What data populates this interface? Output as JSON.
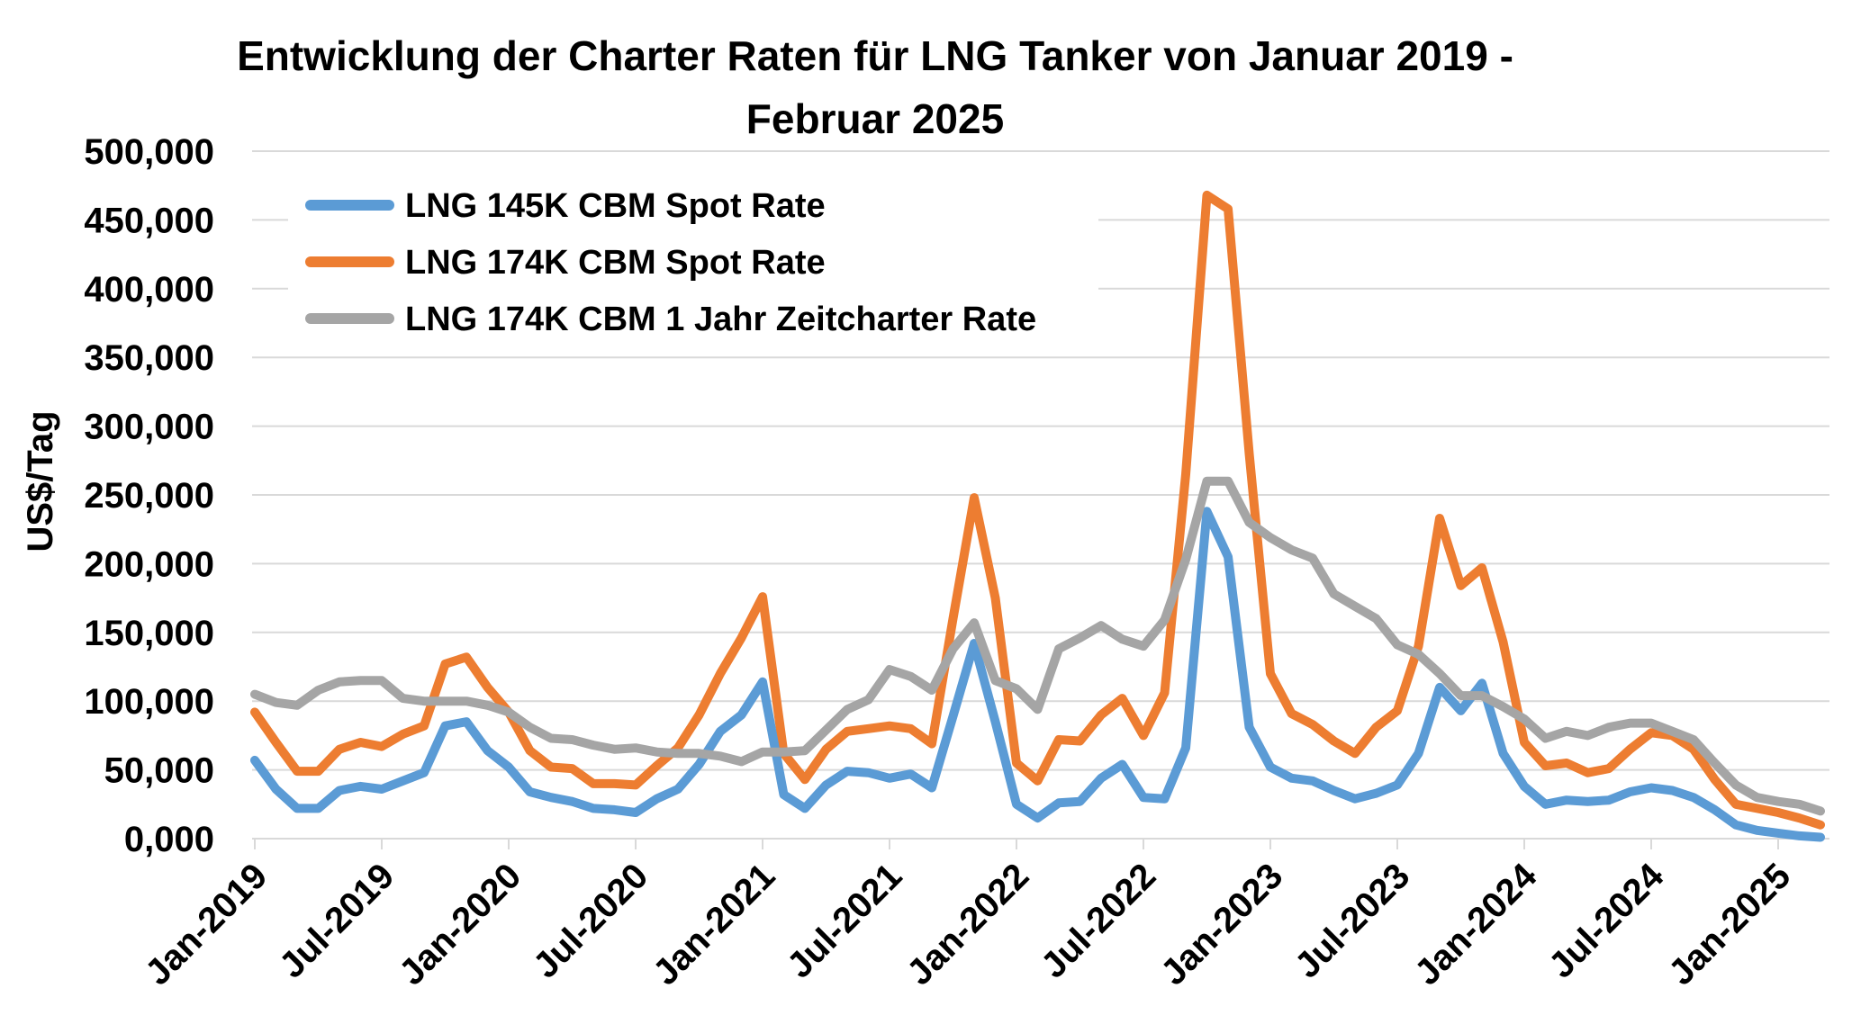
{
  "chart_data": {
    "type": "line",
    "title_lines": [
      "Entwicklung der Charter Raten für LNG Tanker von Januar 2019 -",
      "Februar  2025"
    ],
    "xlabel": "",
    "ylabel": "US$/Tag",
    "ylim": [
      0,
      500000
    ],
    "yticks": [
      0,
      50000,
      100000,
      150000,
      200000,
      250000,
      300000,
      350000,
      400000,
      450000,
      500000
    ],
    "ytick_labels": [
      "0,000",
      "50,000",
      "100,000",
      "150,000",
      "200,000",
      "250,000",
      "300,000",
      "350,000",
      "400,000",
      "450,000",
      "500,000"
    ],
    "xtick_labels": [
      "Jan-2019",
      "Jul-2019",
      "Jan-2020",
      "Jul-2020",
      "Jan-2021",
      "Jul-2021",
      "Jan-2022",
      "Jul-2022",
      "Jan-2023",
      "Jul-2023",
      "Jan-2024",
      "Jul-2024",
      "Jan-2025"
    ],
    "xtick_interval_months": 6,
    "months_count": 75,
    "grid": true,
    "legend_position": "top-left",
    "series": [
      {
        "name": "LNG 145K CBM Spot Rate",
        "color": "#5b9bd5",
        "values": [
          57000,
          36000,
          22000,
          22000,
          35000,
          38000,
          36000,
          42000,
          48000,
          82000,
          85000,
          64000,
          52000,
          34000,
          30000,
          27000,
          22000,
          21000,
          19000,
          29000,
          36000,
          54000,
          78000,
          90000,
          114000,
          32000,
          22000,
          39000,
          49000,
          48000,
          44000,
          47000,
          37000,
          89000,
          142000,
          85000,
          25000,
          15000,
          26000,
          27000,
          44000,
          54000,
          30000,
          29000,
          66000,
          238000,
          205000,
          81000,
          52000,
          44000,
          42000,
          35000,
          29000,
          33000,
          39000,
          62000,
          110000,
          93000,
          113000,
          62000,
          38000,
          25000,
          28000,
          27000,
          28000,
          34000,
          37000,
          35000,
          30000,
          21000,
          10000,
          6000,
          4000,
          2000,
          1000
        ]
      },
      {
        "name": "LNG 174K CBM Spot Rate",
        "color": "#ed7d31",
        "values": [
          92000,
          70000,
          49000,
          49000,
          65000,
          70000,
          67000,
          76000,
          82000,
          127000,
          132000,
          110000,
          92000,
          64000,
          52000,
          51000,
          40000,
          40000,
          39000,
          53000,
          66000,
          90000,
          120000,
          146000,
          176000,
          62000,
          43000,
          65000,
          78000,
          80000,
          82000,
          80000,
          69000,
          160000,
          248000,
          175000,
          55000,
          42000,
          72000,
          71000,
          90000,
          102000,
          75000,
          106000,
          265000,
          468000,
          458000,
          280000,
          120000,
          91000,
          83000,
          71000,
          62000,
          81000,
          93000,
          140000,
          233000,
          184000,
          197000,
          143000,
          70000,
          53000,
          55000,
          48000,
          51000,
          65000,
          77000,
          75000,
          65000,
          43000,
          25000,
          22000,
          19000,
          15000,
          10000
        ]
      },
      {
        "name": "LNG 174K CBM 1 Jahr Zeitcharter Rate",
        "color": "#a5a5a5",
        "values": [
          105000,
          99000,
          97000,
          108000,
          114000,
          115000,
          115000,
          102000,
          100000,
          100000,
          100000,
          97000,
          92000,
          81000,
          73000,
          72000,
          68000,
          65000,
          66000,
          63000,
          62000,
          62000,
          60000,
          56000,
          63000,
          63000,
          64000,
          79000,
          94000,
          101000,
          123000,
          118000,
          108000,
          138000,
          157000,
          115000,
          109000,
          94000,
          138000,
          146000,
          155000,
          145000,
          140000,
          159000,
          203000,
          260000,
          260000,
          230000,
          219000,
          210000,
          204000,
          178000,
          169000,
          160000,
          141000,
          134000,
          120000,
          104000,
          104000,
          96000,
          87000,
          73000,
          78000,
          75000,
          81000,
          84000,
          84000,
          78000,
          72000,
          55000,
          39000,
          30000,
          27000,
          25000,
          20000
        ]
      }
    ]
  }
}
